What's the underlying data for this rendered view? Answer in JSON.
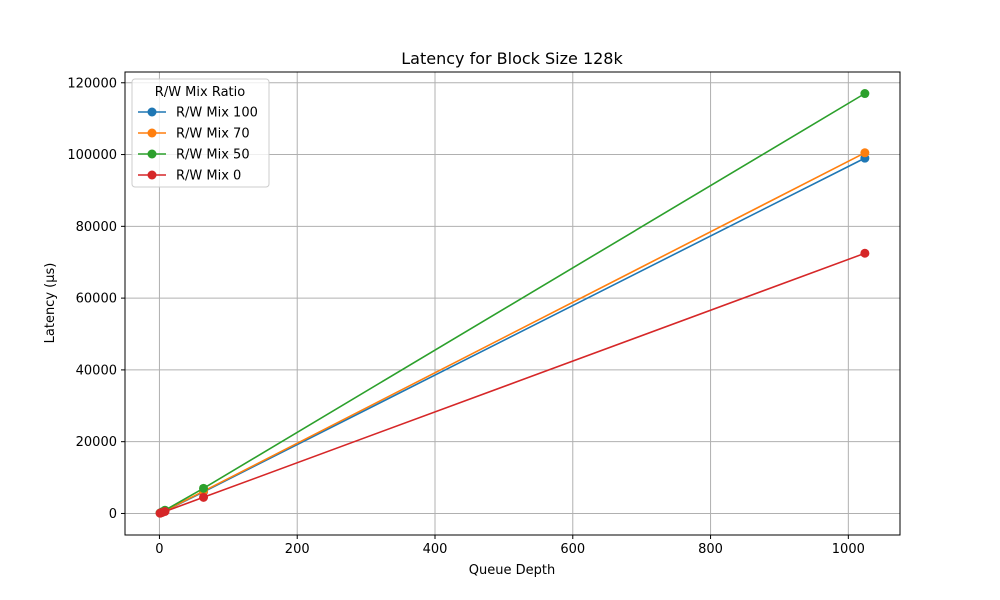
{
  "chart_data": {
    "type": "line",
    "title": "Latency for Block Size 128k",
    "xlabel": "Queue Depth",
    "ylabel": "Latency (µs)",
    "xlim": [
      -50,
      1075
    ],
    "ylim": [
      -6000,
      123000
    ],
    "xticks": [
      0,
      200,
      400,
      600,
      800,
      1000
    ],
    "yticks": [
      0,
      20000,
      40000,
      60000,
      80000,
      100000,
      120000
    ],
    "grid": true,
    "legend": {
      "title": "R/W Mix Ratio",
      "placement": "top-left"
    },
    "x": [
      1,
      4,
      8,
      64,
      1024
    ],
    "series": [
      {
        "name": "R/W Mix 100",
        "color": "#1f77b4",
        "values": [
          100,
          350,
          700,
          6000,
          99000
        ]
      },
      {
        "name": "R/W Mix 70",
        "color": "#ff7f0e",
        "values": [
          110,
          380,
          750,
          6200,
          100500
        ]
      },
      {
        "name": "R/W Mix 50",
        "color": "#2ca02c",
        "values": [
          130,
          450,
          900,
          7000,
          117000
        ]
      },
      {
        "name": "R/W Mix 0",
        "color": "#d62728",
        "values": [
          80,
          280,
          550,
          4500,
          72500
        ]
      }
    ]
  }
}
